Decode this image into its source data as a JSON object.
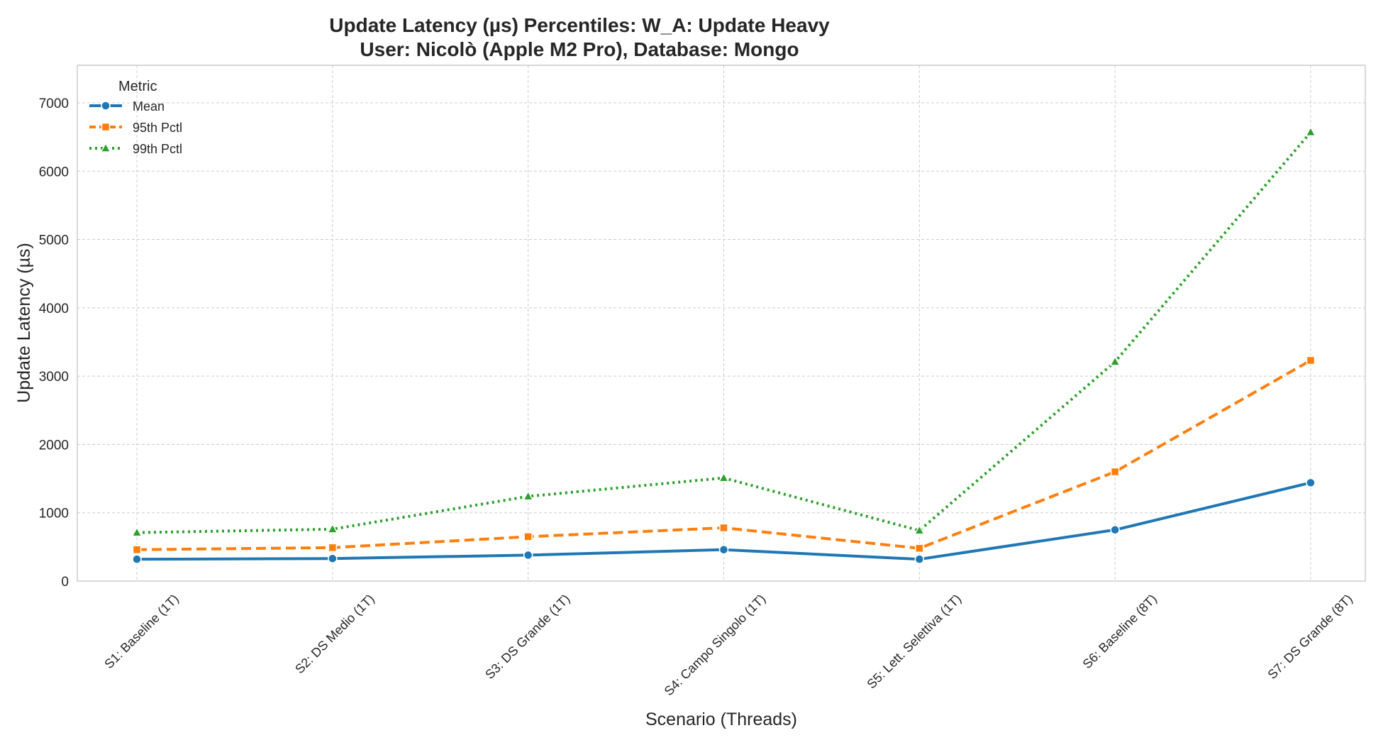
{
  "chart_data": {
    "type": "line",
    "title_line1": "Update Latency (µs) Percentiles: W_A: Update Heavy",
    "title_line2": "User: Nicolò (Apple M2 Pro), Database: Mongo",
    "xlabel": "Scenario (Threads)",
    "ylabel": "Update Latency (µs)",
    "ylim": [
      0,
      7550
    ],
    "yticks": [
      0,
      1000,
      2000,
      3000,
      4000,
      5000,
      6000,
      7000
    ],
    "grid": true,
    "categories": [
      "S1: Baseline (1T)",
      "S2: DS Medio (1T)",
      "S3: DS Grande (1T)",
      "S4: Campo Singolo (1T)",
      "S5: Lett. Selettiva (1T)",
      "S6: Baseline (8T)",
      "S7: DS Grande (8T)"
    ],
    "legend": {
      "title": "Metric",
      "placement": "top-left"
    },
    "series": [
      {
        "name": "Mean",
        "color": "#1f77b4",
        "marker": "circle",
        "dash": "solid",
        "values": [
          320,
          330,
          380,
          460,
          320,
          750,
          1440
        ]
      },
      {
        "name": "95th Pctl",
        "color": "#ff7f0e",
        "marker": "square",
        "dash": "dashed",
        "values": [
          460,
          490,
          650,
          780,
          480,
          1600,
          3230
        ]
      },
      {
        "name": "99th Pctl",
        "color": "#2ca02c",
        "marker": "triangle",
        "dash": "dotted",
        "values": [
          710,
          760,
          1240,
          1510,
          740,
          3210,
          6570
        ]
      }
    ]
  }
}
